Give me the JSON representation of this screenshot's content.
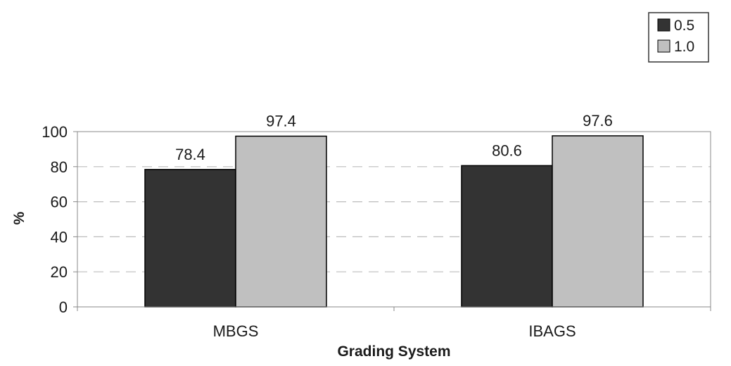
{
  "chart_data": {
    "type": "bar",
    "categories": [
      "MBGS",
      "IBAGS"
    ],
    "series": [
      {
        "name": "0.5",
        "values": [
          78.4,
          80.6
        ],
        "color": "#333333"
      },
      {
        "name": "1.0",
        "values": [
          97.4,
          97.6
        ],
        "color": "#c0c0c0"
      }
    ],
    "data_labels": [
      [
        "78.4",
        "80.6"
      ],
      [
        "97.4",
        "97.6"
      ]
    ],
    "xlabel": "Grading System",
    "ylabel": "%",
    "ylim": [
      0,
      100
    ],
    "yticks": [
      0,
      20,
      40,
      60,
      80,
      100
    ],
    "grid": "horizontal dashed",
    "legend_position": "top-right"
  }
}
